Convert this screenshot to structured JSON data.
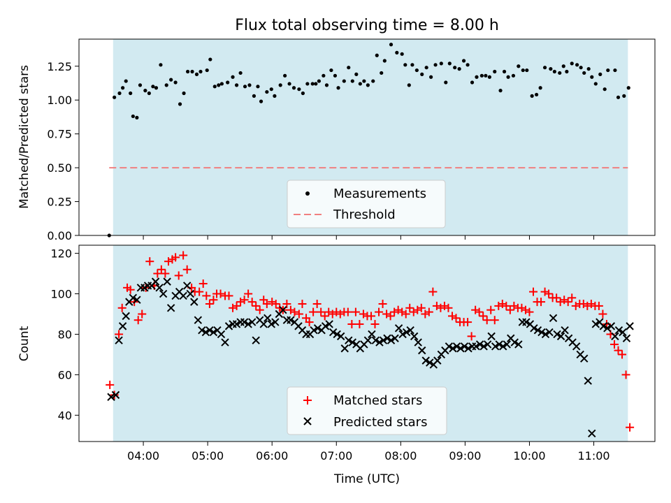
{
  "chart_data": {
    "title": "Flux total observing time = 8.00 h",
    "xlabel": "Time (UTC)",
    "x_ticks": [
      "04:00",
      "05:00",
      "06:00",
      "07:00",
      "08:00",
      "09:00",
      "10:00",
      "11:00"
    ],
    "x_tick_hours": [
      4,
      5,
      6,
      7,
      8,
      9,
      10,
      11
    ],
    "x_range": [
      3.0,
      11.95
    ],
    "shaded_interval": [
      3.53,
      11.53
    ],
    "colors": {
      "shade": "#add8e6",
      "threshold": "#f08080",
      "matched": "#ff0000",
      "predicted": "#000000",
      "measurement": "#000000"
    },
    "panels": [
      {
        "type": "scatter",
        "ylabel": "Matched/Predicted stars",
        "ylim": [
          0,
          1.45
        ],
        "y_ticks": [
          "0.00",
          "0.25",
          "0.50",
          "0.75",
          "1.00",
          "1.25"
        ],
        "y_tick_values": [
          0,
          0.25,
          0.5,
          0.75,
          1.0,
          1.25
        ],
        "threshold": 0.5,
        "legend": {
          "position": "lower-center",
          "entries": [
            "Measurements",
            "Threshold"
          ]
        },
        "series": [
          {
            "name": "Measurements",
            "x": [
              3.47,
              3.55,
              3.63,
              3.68,
              3.73,
              3.8,
              3.84,
              3.9,
              3.95,
              4.03,
              4.09,
              4.15,
              4.2,
              4.27,
              4.36,
              4.43,
              4.5,
              4.57,
              4.63,
              4.69,
              4.76,
              4.83,
              4.89,
              4.99,
              5.04,
              5.11,
              5.17,
              5.22,
              5.31,
              5.39,
              5.45,
              5.51,
              5.58,
              5.65,
              5.72,
              5.78,
              5.83,
              5.92,
              5.99,
              6.04,
              6.13,
              6.2,
              6.27,
              6.34,
              6.42,
              6.48,
              6.55,
              6.63,
              6.68,
              6.73,
              6.8,
              6.85,
              6.92,
              6.98,
              7.03,
              7.12,
              7.19,
              7.25,
              7.31,
              7.37,
              7.43,
              7.49,
              7.57,
              7.63,
              7.7,
              7.75,
              7.85,
              7.94,
              8.02,
              8.07,
              8.13,
              8.18,
              8.25,
              8.33,
              8.4,
              8.47,
              8.54,
              8.63,
              8.7,
              8.76,
              8.84,
              8.91,
              8.98,
              9.04,
              9.11,
              9.18,
              9.26,
              9.32,
              9.38,
              9.46,
              9.55,
              9.61,
              9.67,
              9.75,
              9.83,
              9.9,
              9.96,
              10.04,
              10.11,
              10.17,
              10.24,
              10.33,
              10.39,
              10.47,
              10.53,
              10.58,
              10.66,
              10.74,
              10.8,
              10.85,
              10.92,
              10.97,
              11.03,
              11.1,
              11.17,
              11.22,
              11.33,
              11.38,
              11.47,
              11.54
            ],
            "y": [
              0.0,
              1.02,
              1.05,
              1.09,
              1.14,
              1.05,
              0.88,
              0.87,
              1.11,
              1.07,
              1.05,
              1.1,
              1.09,
              1.26,
              1.11,
              1.15,
              1.13,
              0.97,
              1.05,
              1.21,
              1.21,
              1.19,
              1.21,
              1.22,
              1.3,
              1.1,
              1.11,
              1.12,
              1.13,
              1.17,
              1.11,
              1.2,
              1.1,
              1.11,
              1.03,
              1.1,
              0.99,
              1.06,
              1.08,
              1.03,
              1.11,
              1.18,
              1.12,
              1.09,
              1.08,
              1.05,
              1.12,
              1.12,
              1.12,
              1.14,
              1.18,
              1.11,
              1.22,
              1.18,
              1.09,
              1.14,
              1.24,
              1.14,
              1.19,
              1.12,
              1.14,
              1.11,
              1.14,
              1.33,
              1.2,
              1.29,
              1.41,
              1.35,
              1.34,
              1.26,
              1.11,
              1.26,
              1.22,
              1.19,
              1.24,
              1.17,
              1.26,
              1.27,
              1.13,
              1.27,
              1.24,
              1.23,
              1.29,
              1.26,
              1.13,
              1.17,
              1.18,
              1.18,
              1.17,
              1.21,
              1.07,
              1.21,
              1.17,
              1.18,
              1.25,
              1.22,
              1.22,
              1.03,
              1.04,
              1.09,
              1.24,
              1.23,
              1.21,
              1.2,
              1.25,
              1.21,
              1.27,
              1.26,
              1.24,
              1.2,
              1.23,
              1.17,
              1.12,
              1.19,
              1.08,
              1.22,
              1.22,
              1.02,
              1.03,
              1.09
            ]
          }
        ]
      },
      {
        "type": "scatter",
        "ylabel": "Count",
        "ylim": [
          27,
          124
        ],
        "y_ticks": [
          "40",
          "60",
          "80",
          "100",
          "120"
        ],
        "y_tick_values": [
          40,
          60,
          80,
          100,
          120
        ],
        "legend": {
          "position": "lower-center",
          "entries": [
            "Matched stars",
            "Predicted stars"
          ]
        },
        "series": [
          {
            "name": "Matched stars",
            "x": [
              3.48,
              3.55,
              3.62,
              3.67,
              3.75,
              3.8,
              3.86,
              3.92,
              3.98,
              4.04,
              4.1,
              4.17,
              4.22,
              4.28,
              4.34,
              4.39,
              4.45,
              4.5,
              4.55,
              4.62,
              4.68,
              4.75,
              4.8,
              4.87,
              4.93,
              4.98,
              5.03,
              5.09,
              5.14,
              5.2,
              5.27,
              5.33,
              5.39,
              5.45,
              5.51,
              5.57,
              5.63,
              5.69,
              5.75,
              5.81,
              5.87,
              5.92,
              6.0,
              6.06,
              6.12,
              6.17,
              6.23,
              6.29,
              6.35,
              6.42,
              6.47,
              6.53,
              6.58,
              6.64,
              6.7,
              6.76,
              6.82,
              6.88,
              6.94,
              7.0,
              7.06,
              7.12,
              7.18,
              7.24,
              7.3,
              7.36,
              7.42,
              7.48,
              7.54,
              7.6,
              7.66,
              7.72,
              7.78,
              7.84,
              7.9,
              7.96,
              8.02,
              8.08,
              8.14,
              8.2,
              8.26,
              8.32,
              8.38,
              8.44,
              8.5,
              8.56,
              8.62,
              8.68,
              8.74,
              8.8,
              8.86,
              8.92,
              8.98,
              9.04,
              9.1,
              9.16,
              9.22,
              9.28,
              9.34,
              9.4,
              9.46,
              9.52,
              9.58,
              9.64,
              9.7,
              9.76,
              9.82,
              9.88,
              9.94,
              10.0,
              10.06,
              10.12,
              10.18,
              10.24,
              10.3,
              10.36,
              10.42,
              10.48,
              10.54,
              10.6,
              10.66,
              10.72,
              10.78,
              10.84,
              10.9,
              10.96,
              11.02,
              11.08,
              11.14,
              11.2,
              11.26,
              11.32,
              11.38,
              11.44,
              11.5,
              11.56
            ],
            "y": [
              55,
              50,
              80,
              93,
              103,
              102,
              96,
              87,
              90,
              103,
              116,
              104,
              110,
              112,
              110,
              116,
              117,
              118,
              109,
              119,
              112,
              103,
              101,
              101,
              105,
              99,
              95,
              97,
              100,
              100,
              99,
              99,
              93,
              94,
              96,
              97,
              100,
              96,
              94,
              92,
              97,
              95,
              96,
              95,
              93,
              92,
              95,
              92,
              91,
              90,
              95,
              88,
              86,
              91,
              95,
              91,
              89,
              91,
              90,
              91,
              90,
              91,
              91,
              85,
              91,
              85,
              90,
              89,
              89,
              85,
              91,
              95,
              90,
              89,
              91,
              92,
              91,
              90,
              93,
              91,
              92,
              93,
              90,
              91,
              101,
              94,
              93,
              94,
              93,
              89,
              88,
              86,
              86,
              86,
              79,
              92,
              91,
              89,
              87,
              92,
              87,
              94,
              95,
              94,
              92,
              94,
              93,
              93,
              92,
              91,
              101,
              96,
              96,
              101,
              100,
              98,
              98,
              96,
              97,
              96,
              98,
              94,
              95,
              95,
              94,
              95,
              94,
              94,
              90,
              85,
              80,
              75,
              72,
              70,
              60,
              34
            ]
          },
          {
            "name": "Predicted stars",
            "x": [
              3.5,
              3.57,
              3.62,
              3.68,
              3.73,
              3.78,
              3.84,
              3.9,
              3.96,
              4.02,
              4.07,
              4.13,
              4.19,
              4.25,
              4.31,
              4.37,
              4.43,
              4.5,
              4.56,
              4.62,
              4.68,
              4.73,
              4.79,
              4.85,
              4.91,
              4.97,
              5.03,
              5.09,
              5.15,
              5.21,
              5.27,
              5.33,
              5.39,
              5.45,
              5.51,
              5.57,
              5.63,
              5.69,
              5.75,
              5.81,
              5.87,
              5.93,
              5.99,
              6.05,
              6.11,
              6.17,
              6.23,
              6.29,
              6.35,
              6.41,
              6.47,
              6.53,
              6.59,
              6.65,
              6.71,
              6.77,
              6.83,
              6.89,
              6.95,
              7.01,
              7.07,
              7.13,
              7.19,
              7.25,
              7.31,
              7.37,
              7.43,
              7.49,
              7.55,
              7.61,
              7.67,
              7.73,
              7.79,
              7.85,
              7.91,
              7.97,
              8.03,
              8.09,
              8.15,
              8.21,
              8.27,
              8.33,
              8.39,
              8.45,
              8.51,
              8.57,
              8.63,
              8.69,
              8.75,
              8.81,
              8.87,
              8.93,
              8.99,
              9.05,
              9.11,
              9.17,
              9.23,
              9.29,
              9.35,
              9.41,
              9.47,
              9.53,
              9.59,
              9.65,
              9.71,
              9.77,
              9.83,
              9.89,
              9.95,
              10.01,
              10.07,
              10.13,
              10.19,
              10.25,
              10.31,
              10.37,
              10.43,
              10.49,
              10.55,
              10.61,
              10.67,
              10.73,
              10.79,
              10.85,
              10.91,
              10.97,
              11.03,
              11.09,
              11.15,
              11.21,
              11.27,
              11.33,
              11.39,
              11.45,
              11.51,
              11.56
            ],
            "y": [
              49,
              50,
              77,
              84,
              89,
              96,
              98,
              97,
              103,
              103,
              104,
              104,
              106,
              103,
              100,
              106,
              93,
              99,
              101,
              99,
              104,
              100,
              96,
              87,
              82,
              81,
              82,
              81,
              82,
              80,
              76,
              84,
              85,
              85,
              86,
              86,
              85,
              86,
              77,
              87,
              85,
              88,
              85,
              86,
              90,
              92,
              87,
              87,
              86,
              84,
              82,
              80,
              80,
              82,
              83,
              82,
              84,
              85,
              81,
              80,
              79,
              73,
              77,
              76,
              75,
              73,
              75,
              77,
              80,
              77,
              76,
              77,
              78,
              77,
              78,
              83,
              80,
              81,
              82,
              79,
              76,
              72,
              67,
              66,
              65,
              67,
              70,
              72,
              74,
              73,
              74,
              73,
              74,
              73,
              74,
              74,
              75,
              74,
              75,
              79,
              74,
              75,
              74,
              75,
              78,
              76,
              75,
              86,
              86,
              85,
              83,
              82,
              81,
              80,
              81,
              88,
              80,
              79,
              82,
              78,
              76,
              74,
              70,
              68,
              57,
              31,
              85,
              86,
              84,
              83,
              84,
              79,
              82,
              81,
              78,
              84
            ],
            "note": "series drawn as x markers"
          }
        ]
      }
    ]
  }
}
